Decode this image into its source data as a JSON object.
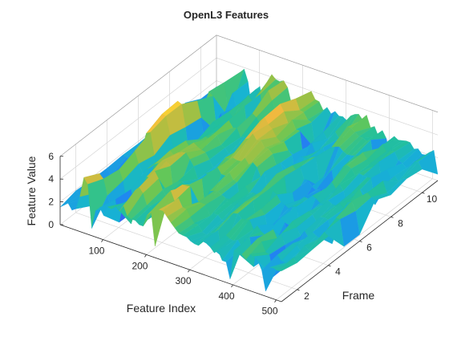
{
  "chart_data": {
    "type": "surface",
    "title": "OpenL3 Features",
    "xlabel": "Feature Index",
    "ylabel": "Frame",
    "zlabel": "Feature Value",
    "x_ticks": [
      100,
      200,
      300,
      400,
      500
    ],
    "y_ticks": [
      2,
      4,
      6,
      8,
      10
    ],
    "z_ticks": [
      0,
      2,
      4,
      6
    ],
    "xlim": [
      1,
      512
    ],
    "ylim": [
      1,
      11
    ],
    "zlim": [
      0,
      6
    ],
    "grid": true,
    "colormap": "parula",
    "colormap_stops": [
      "#3e26a8",
      "#4253f2",
      "#1f88f1",
      "#17b3d3",
      "#23c09b",
      "#66c755",
      "#b1be40",
      "#f0b93f",
      "#fbdb2f",
      "#f9fb0e"
    ],
    "approx_feature_profile": [
      {
        "feature_index": 10,
        "value": 2.0
      },
      {
        "feature_index": 40,
        "value": 1.6
      },
      {
        "feature_index": 60,
        "value": 5.6
      },
      {
        "feature_index": 80,
        "value": 2.4
      },
      {
        "feature_index": 120,
        "value": 3.6
      },
      {
        "feature_index": 150,
        "value": 4.2
      },
      {
        "feature_index": 180,
        "value": 2.2
      },
      {
        "feature_index": 220,
        "value": 4.6
      },
      {
        "feature_index": 260,
        "value": 3.6
      },
      {
        "feature_index": 300,
        "value": 2.6
      },
      {
        "feature_index": 340,
        "value": 3.4
      },
      {
        "feature_index": 380,
        "value": 2.4
      },
      {
        "feature_index": 420,
        "value": 3.0
      },
      {
        "feature_index": 460,
        "value": 2.6
      },
      {
        "feature_index": 500,
        "value": 2.8
      }
    ]
  }
}
